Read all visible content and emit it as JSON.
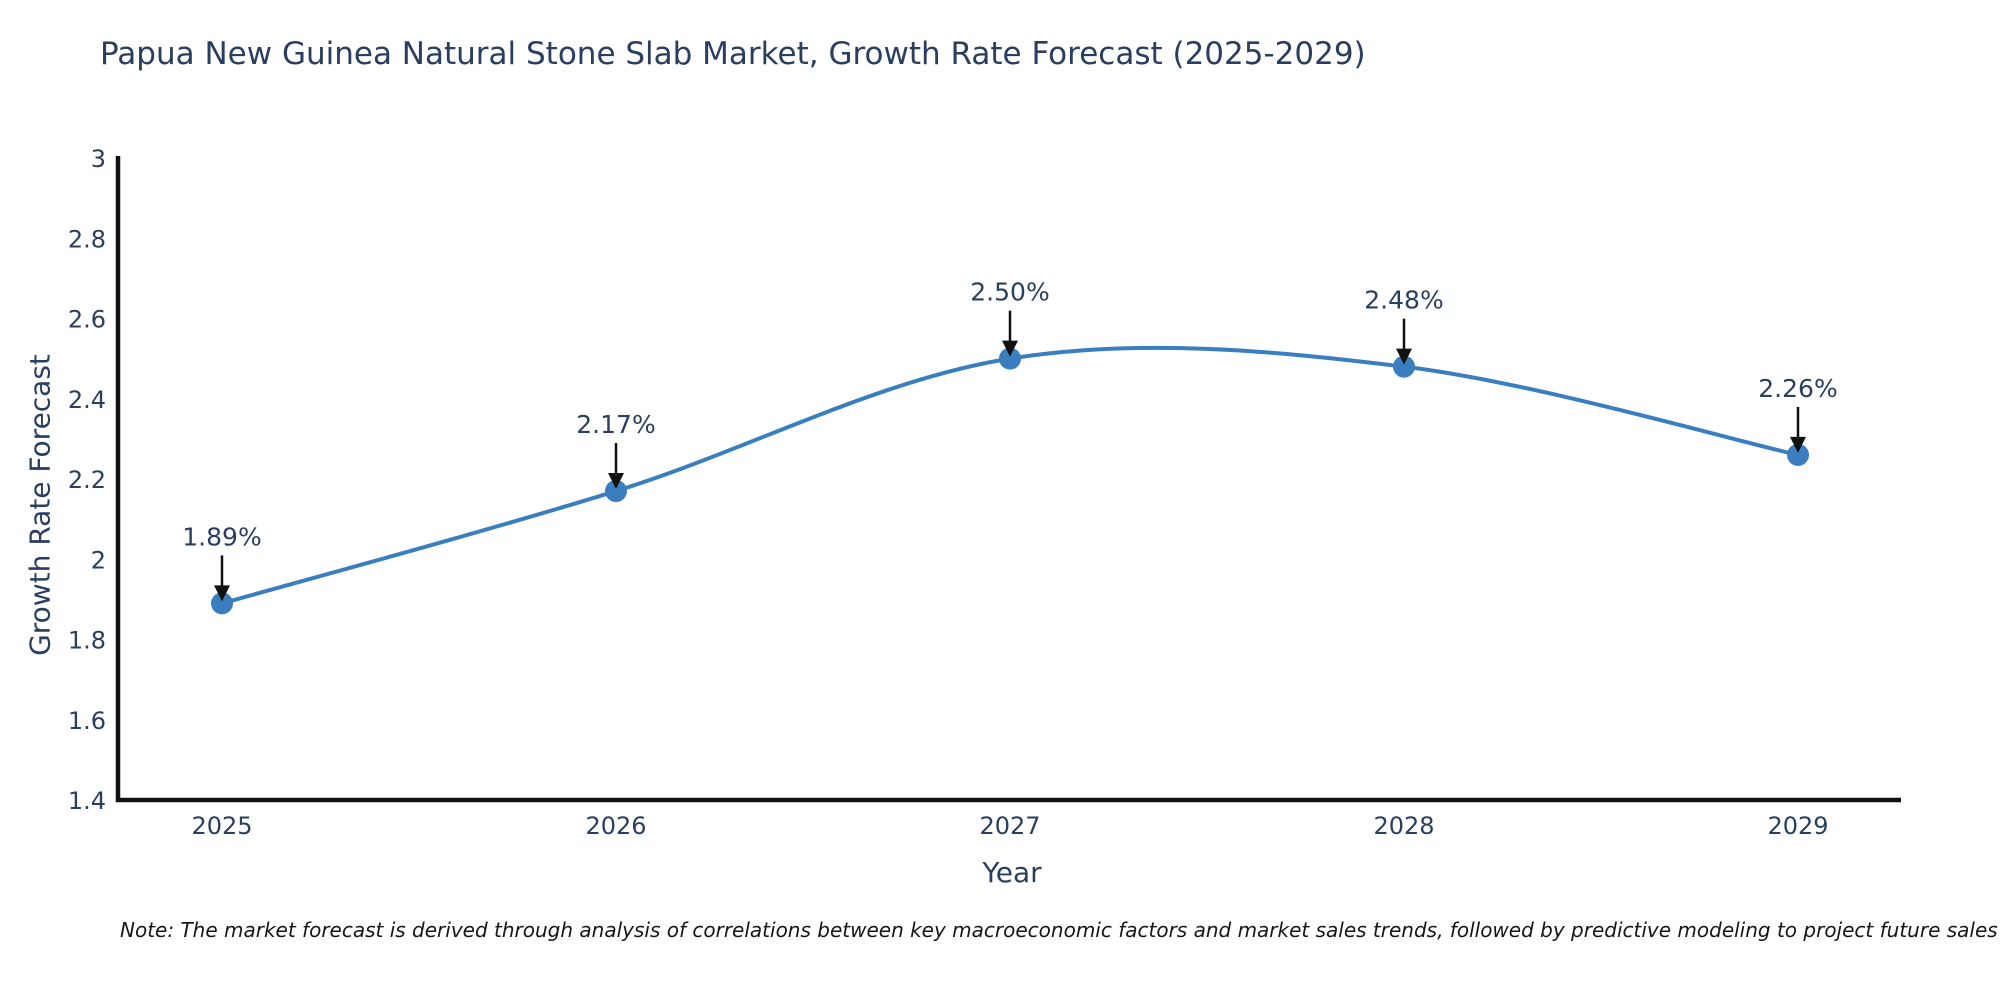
{
  "note": "Note: The market forecast is derived through analysis of correlations between key macroeconomic factors and market sales trends, followed by predictive modeling to project future sales",
  "chart_data": {
    "type": "line",
    "title": "Papua New Guinea Natural Stone Slab Market, Growth Rate Forecast (2025-2029)",
    "xlabel": "Year",
    "ylabel": "Growth Rate Forecast",
    "categories": [
      "2025",
      "2026",
      "2027",
      "2028",
      "2029"
    ],
    "values": [
      1.89,
      2.17,
      2.5,
      2.48,
      2.26
    ],
    "point_labels": [
      "1.89%",
      "2.17%",
      "2.50%",
      "2.48%",
      "2.26%"
    ],
    "ylim": [
      1.4,
      3.0
    ],
    "yticks": [
      1.4,
      1.6,
      1.8,
      2.0,
      2.2,
      2.4,
      2.6,
      2.8,
      3.0
    ],
    "ytick_labels": [
      "1.4",
      "1.6",
      "1.8",
      "2",
      "2.2",
      "2.4",
      "2.6",
      "2.8",
      "3"
    ],
    "line_shape": "spline",
    "grid": false,
    "legend": "none",
    "colors": {
      "line": "#3a7ebf",
      "marker": "#3a7ebf",
      "text": "#2a3f5f",
      "axis": "#111111",
      "arrow": "#111111"
    }
  }
}
